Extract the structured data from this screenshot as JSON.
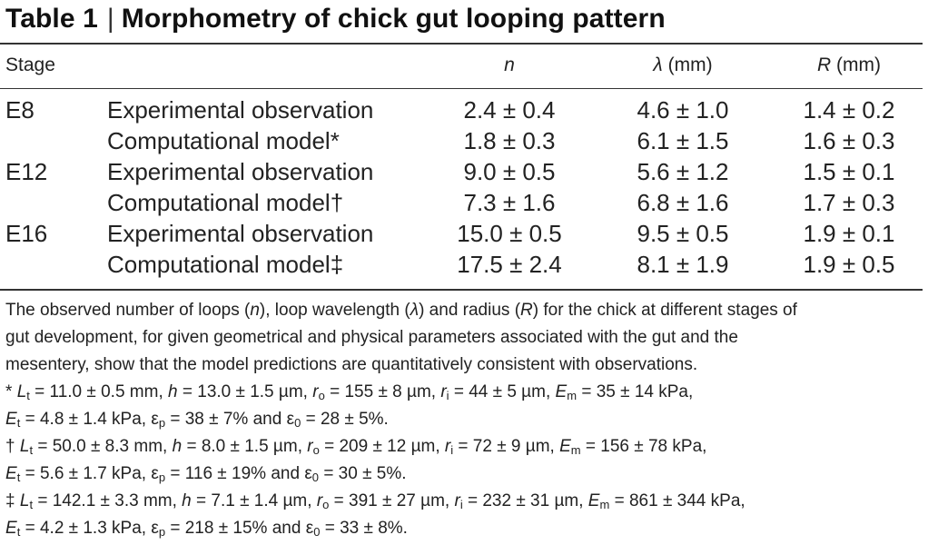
{
  "title": {
    "prefix": "Table 1",
    "divider": "|",
    "text": "Morphometry of chick gut looping pattern"
  },
  "header": {
    "stage": "Stage",
    "n": "n",
    "lambda": "λ",
    "lambda_unit": " (mm)",
    "R": "R",
    "R_unit": " (mm)"
  },
  "rows": [
    {
      "stage": "E8",
      "desc": "Experimental observation",
      "n": "2.4 ± 0.4",
      "lambda": "4.6 ± 1.0",
      "R": "1.4 ± 0.2"
    },
    {
      "stage": "",
      "desc": "Computational model*",
      "n": "1.8 ± 0.3",
      "lambda": "6.1 ± 1.5",
      "R": "1.6 ± 0.3"
    },
    {
      "stage": "E12",
      "desc": "Experimental observation",
      "n": "9.0 ± 0.5",
      "lambda": "5.6 ± 1.2",
      "R": "1.5 ± 0.1"
    },
    {
      "stage": "",
      "desc": "Computational model†",
      "n": "7.3 ± 1.6",
      "lambda": "6.8 ± 1.6",
      "R": "1.7 ± 0.3"
    },
    {
      "stage": "E16",
      "desc": "Experimental observation",
      "n": "15.0 ± 0.5",
      "lambda": "9.5 ± 0.5",
      "R": "1.9 ± 0.1"
    },
    {
      "stage": "",
      "desc": "Computational model‡",
      "n": "17.5 ± 2.4",
      "lambda": "8.1 ± 1.9",
      "R": "1.9 ± 0.5"
    }
  ],
  "caption": {
    "line1_a": "The observed number of loops (",
    "line1_n": "n",
    "line1_b": "), loop wavelength (",
    "line1_l": "λ",
    "line1_c": ") and radius (",
    "line1_R": "R",
    "line1_d": ") for the chick at different stages of",
    "line2": "gut development, for given geometrical and physical parameters associated with the gut and the",
    "line3": "mesentery, show that the model predictions are quantitatively consistent with observations."
  },
  "footnotes": [
    {
      "mark": "*",
      "Lt": "= 11.0 ± 0.5 mm,",
      "h": "= 13.0 ± 1.5 µm,",
      "ro": "= 155 ± 8 µm,",
      "ri": "= 44 ± 5 µm,",
      "Em": "= 35 ± 14 kPa,",
      "Et": "= 4.8 ± 1.4 kPa,",
      "ep": "= 38 ± 7% and",
      "e0": "= 28 ± 5%."
    },
    {
      "mark": "†",
      "Lt": "= 50.0 ± 8.3 mm,",
      "h": "= 8.0 ± 1.5 µm,",
      "ro": "= 209 ± 12 µm,",
      "ri": "= 72 ± 9 µm,",
      "Em": "= 156 ± 78 kPa,",
      "Et": "= 5.6 ± 1.7 kPa,",
      "ep": "= 116 ± 19% and",
      "e0": "= 30 ± 5%."
    },
    {
      "mark": "‡",
      "Lt": "= 142.1 ± 3.3 mm,",
      "h": "= 7.1 ± 1.4 µm,",
      "ro": "= 391 ± 27 µm,",
      "ri": "= 232 ± 31 µm,",
      "Em": "= 861 ± 344 kPa,",
      "Et": "= 4.2 ± 1.3 kPa,",
      "ep": "= 218 ± 15% and",
      "e0": "= 33 ± 8%."
    }
  ],
  "symbols": {
    "L": "L",
    "t": "t",
    "h": "h",
    "r": "r",
    "o": "o",
    "i": "i",
    "E": "E",
    "m": "m",
    "eps": "ε",
    "p": "p",
    "zero": "0"
  }
}
